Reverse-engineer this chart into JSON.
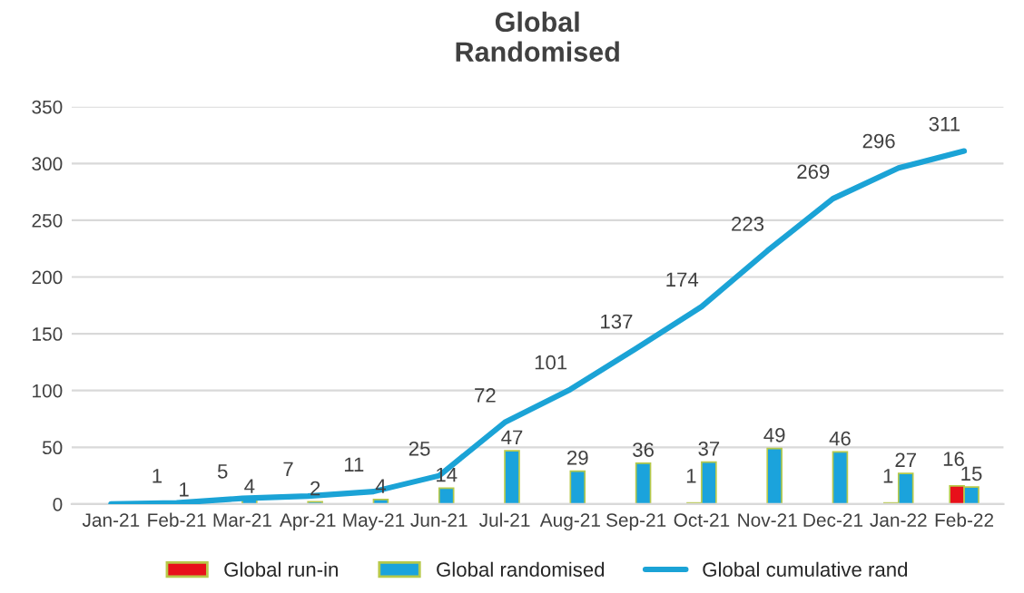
{
  "chart_data": {
    "type": "bar",
    "title": "Global\nRandomised",
    "categories": [
      "Jan-21",
      "Feb-21",
      "Mar-21",
      "Apr-21",
      "May-21",
      "Jun-21",
      "Jul-21",
      "Aug-21",
      "Sep-21",
      "Oct-21",
      "Nov-21",
      "Dec-21",
      "Jan-22",
      "Feb-22"
    ],
    "series": [
      {
        "name": "Global run-in",
        "color": "#e8101a",
        "values": [
          null,
          null,
          null,
          null,
          null,
          null,
          null,
          null,
          null,
          1,
          null,
          null,
          1,
          16
        ],
        "value_labels": [
          null,
          null,
          null,
          null,
          null,
          null,
          null,
          null,
          null,
          "1",
          null,
          null,
          "1",
          "16"
        ]
      },
      {
        "name": "Global randomised",
        "color": "#1ba3dc",
        "values": [
          null,
          1,
          4,
          2,
          4,
          14,
          47,
          29,
          36,
          37,
          49,
          46,
          27,
          15
        ],
        "value_labels": [
          null,
          "1",
          "4",
          "2",
          "4",
          "14",
          "47",
          "29",
          "36",
          "37",
          "49",
          "46",
          "27",
          "15"
        ]
      },
      {
        "name": "Global cumulative rand",
        "type": "line",
        "color": "#1ba3d6",
        "values": [
          0,
          1,
          5,
          7,
          11,
          25,
          72,
          101,
          137,
          174,
          223,
          269,
          296,
          311
        ],
        "value_labels": [
          null,
          "1",
          "5",
          "7",
          "11",
          "25",
          "72",
          "101",
          "137",
          "174",
          "223",
          "269",
          "296",
          "311"
        ]
      }
    ],
    "ylim": [
      0,
      350
    ],
    "yticks": [
      0,
      50,
      100,
      150,
      200,
      250,
      300,
      350
    ],
    "grid": "y",
    "legend": "bottom"
  }
}
